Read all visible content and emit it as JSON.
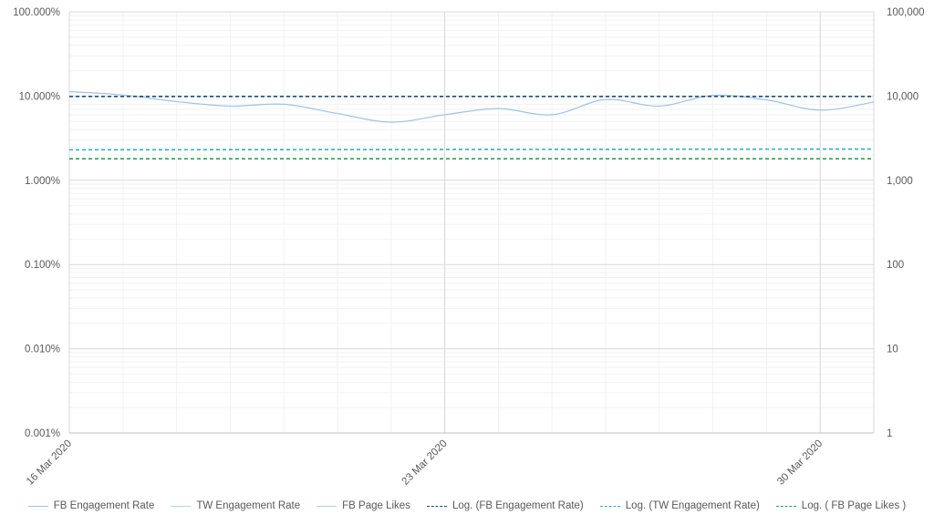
{
  "chart_data": {
    "type": "line",
    "log_scale": true,
    "grid": true,
    "legend_position": "bottom",
    "x_start": "16 Mar 2020",
    "x_end": "31 Mar 2020",
    "x_tick_labels": [
      "16 Mar 2020",
      "23 Mar 2020",
      "30 Mar 2020"
    ],
    "y_left": {
      "ticks": [
        "0.001%",
        "0.010%",
        "0.100%",
        "1.000%",
        "10.000%",
        "100.000%"
      ],
      "range": [
        0.001,
        100
      ],
      "unit": "%"
    },
    "y_right": {
      "ticks": [
        "1",
        "10",
        "100",
        "1,000",
        "10,000",
        "100,000"
      ],
      "range": [
        1,
        100000
      ]
    },
    "series": [
      {
        "name": "FB Engagement Rate",
        "color": "#9dc3e6",
        "style": "solid",
        "axis": "left",
        "x": [
          "16 Mar 2020",
          "17 Mar 2020",
          "18 Mar 2020",
          "19 Mar 2020",
          "20 Mar 2020",
          "21 Mar 2020",
          "22 Mar 2020",
          "23 Mar 2020",
          "24 Mar 2020",
          "25 Mar 2020",
          "26 Mar 2020",
          "27 Mar 2020",
          "28 Mar 2020",
          "29 Mar 2020",
          "30 Mar 2020",
          "31 Mar 2020"
        ],
        "values": [
          11.3,
          10.3,
          8.6,
          7.6,
          8.0,
          6.2,
          4.9,
          6.0,
          7.1,
          6.0,
          9.1,
          7.6,
          10.2,
          9.0,
          6.8,
          8.5
        ]
      },
      {
        "name": "TW Engagement Rate",
        "color": "#b4d6ee",
        "style": "solid",
        "axis": "left",
        "values": []
      },
      {
        "name": "FB Page Likes",
        "color": "#a9d3e8",
        "style": "solid",
        "axis": "right",
        "values": []
      },
      {
        "name": "Log. (FB Engagement Rate)",
        "color": "#1f4e79",
        "style": "dashed",
        "axis": "left",
        "values": [
          9.9,
          9.9
        ]
      },
      {
        "name": "Log. (TW Engagement Rate)",
        "color": "#2ab0c8",
        "style": "dashed",
        "axis": "left",
        "values": [
          2.3,
          2.35
        ]
      },
      {
        "name": "Log. ( FB Page Likes )",
        "color": "#2e9e5a",
        "style": "dashed",
        "axis": "left",
        "values": [
          1.8,
          1.8
        ]
      }
    ]
  }
}
